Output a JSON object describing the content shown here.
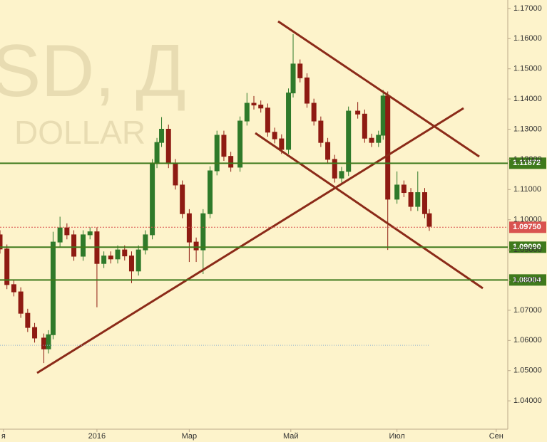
{
  "chart_data": {
    "type": "candlestick",
    "watermark": {
      "symbol": "SD, Д",
      "name": "DOLLAR"
    },
    "x": [
      0,
      3,
      6,
      9,
      12,
      15,
      19,
      21,
      23,
      26,
      29,
      32,
      36,
      39,
      42,
      45,
      48,
      51,
      54,
      57,
      60,
      63,
      66,
      68,
      70,
      73,
      76,
      79,
      82,
      85,
      88,
      91,
      94,
      97,
      100,
      104,
      107,
      110,
      113,
      116,
      119,
      122,
      125,
      127,
      130,
      133,
      136,
      139,
      142,
      145,
      148,
      151,
      155,
      158,
      161,
      164,
      166,
      168,
      172,
      175,
      178,
      181,
      184,
      186
    ],
    "open": [
      1.095,
      1.0903,
      1.0785,
      1.0761,
      1.069,
      1.0643,
      1.0608,
      1.0572,
      1.0619,
      1.0926,
      1.0973,
      1.095,
      1.0879,
      1.095,
      1.096,
      1.0855,
      1.088,
      1.087,
      1.09,
      1.088,
      1.083,
      1.09,
      1.095,
      1.1186,
      1.1256,
      1.13,
      1.1186,
      1.1115,
      1.102,
      1.0926,
      1.09,
      1.102,
      1.1162,
      1.128,
      1.121,
      1.1174,
      1.1327,
      1.1386,
      1.138,
      1.137,
      1.129,
      1.1268,
      1.1233,
      1.142,
      1.1516,
      1.147,
      1.1386,
      1.1327,
      1.1256,
      1.12,
      1.1138,
      1.116,
      1.136,
      1.135,
      1.127,
      1.1256,
      1.128,
      1.141,
      1.1068,
      1.1115,
      1.109,
      1.1044,
      1.109,
      1.102
    ],
    "high": [
      1.0965,
      1.0918,
      1.08,
      1.0776,
      1.0705,
      1.0658,
      1.0623,
      1.0634,
      1.096,
      1.101,
      1.0988,
      1.0965,
      1.0965,
      1.0975,
      1.0975,
      1.0895,
      1.0895,
      1.0915,
      1.0915,
      1.0895,
      1.0915,
      1.0965,
      1.1201,
      1.1271,
      1.134,
      1.1315,
      1.1201,
      1.113,
      1.1035,
      1.0941,
      1.1035,
      1.1177,
      1.1295,
      1.1295,
      1.1225,
      1.1342,
      1.142,
      1.141,
      1.1395,
      1.1385,
      1.1305,
      1.1283,
      1.1435,
      1.1615,
      1.1531,
      1.1485,
      1.1401,
      1.1342,
      1.1271,
      1.1215,
      1.1175,
      1.1375,
      1.139,
      1.1365,
      1.1285,
      1.1295,
      1.143,
      1.1425,
      1.116,
      1.113,
      1.1105,
      1.116,
      1.1105,
      1.1035
    ],
    "low": [
      1.0888,
      1.077,
      1.0746,
      1.0675,
      1.0628,
      1.0593,
      1.0525,
      1.0557,
      1.0604,
      1.0911,
      1.0935,
      1.0864,
      1.0864,
      1.0935,
      1.071,
      1.084,
      1.0855,
      1.0855,
      1.0865,
      1.079,
      1.0815,
      1.0885,
      1.0935,
      1.1171,
      1.1241,
      1.1171,
      1.11,
      1.1005,
      1.086,
      1.086,
      1.082,
      1.1005,
      1.1147,
      1.1195,
      1.1159,
      1.1159,
      1.1312,
      1.1365,
      1.1355,
      1.1275,
      1.1253,
      1.1218,
      1.1218,
      1.1405,
      1.1455,
      1.1371,
      1.1312,
      1.1241,
      1.1185,
      1.1123,
      1.1123,
      1.1145,
      1.1335,
      1.1255,
      1.1241,
      1.1241,
      1.1265,
      1.09,
      1.1053,
      1.1075,
      1.1029,
      1.1029,
      1.1005,
      1.0963
    ],
    "close": [
      1.0903,
      1.0785,
      1.0761,
      1.069,
      1.0643,
      1.0608,
      1.0572,
      1.0619,
      1.0926,
      1.0973,
      1.095,
      1.0879,
      1.095,
      1.096,
      1.0855,
      1.088,
      1.087,
      1.09,
      1.088,
      1.083,
      1.09,
      1.095,
      1.1186,
      1.1256,
      1.13,
      1.1186,
      1.1115,
      1.102,
      1.0926,
      1.09,
      1.102,
      1.1162,
      1.128,
      1.121,
      1.1174,
      1.1327,
      1.1386,
      1.138,
      1.137,
      1.129,
      1.1268,
      1.1233,
      1.142,
      1.1516,
      1.147,
      1.1386,
      1.1327,
      1.1256,
      1.12,
      1.1138,
      1.116,
      1.136,
      1.135,
      1.127,
      1.1256,
      1.128,
      1.141,
      1.1068,
      1.1115,
      1.109,
      1.1044,
      1.109,
      1.102,
      1.0978
    ],
    "up_color": "#2f7a2a",
    "down_color": "#8e1b12",
    "xlim": [
      0,
      220
    ],
    "xticks": [
      {
        "value": 1.5,
        "label": "я"
      },
      {
        "value": 42,
        "label": "2016"
      },
      {
        "value": 82,
        "label": "Мар"
      },
      {
        "value": 126,
        "label": "Май"
      },
      {
        "value": 172,
        "label": "Июл"
      },
      {
        "value": 215,
        "label": "Сен"
      }
    ],
    "ylim": [
      1.0306,
      1.1728
    ],
    "yticks": [
      {
        "value": 1.04,
        "label": "1.04000"
      },
      {
        "value": 1.05,
        "label": "1.05000"
      },
      {
        "value": 1.06,
        "label": "1.06000"
      },
      {
        "value": 1.07,
        "label": "1.07000"
      },
      {
        "value": 1.08,
        "label": "1.08000"
      },
      {
        "value": 1.09,
        "label": "1.09000"
      },
      {
        "value": 1.1,
        "label": "1.10000"
      },
      {
        "value": 1.11,
        "label": "1.11000"
      },
      {
        "value": 1.12,
        "label": "1.12000"
      },
      {
        "value": 1.13,
        "label": "1.13000"
      },
      {
        "value": 1.14,
        "label": "1.14000"
      },
      {
        "value": 1.15,
        "label": "1.15000"
      },
      {
        "value": 1.16,
        "label": "1.16000"
      },
      {
        "value": 1.17,
        "label": "1.17000"
      }
    ],
    "levels": [
      {
        "value": 1.11872,
        "label": "1.11872",
        "color": "#3f7a1c",
        "style": "solid"
      },
      {
        "value": 1.0975,
        "label": "1.09750",
        "color": "#d9534f",
        "style": "dashed"
      },
      {
        "value": 1.0909,
        "label": "1.09090",
        "color": "#3f7a1c",
        "style": "solid"
      },
      {
        "value": 1.08004,
        "label": "1.08004",
        "color": "#3f7a1c",
        "style": "solid"
      },
      {
        "value": 1.0584,
        "color": "#8fb3cf",
        "style": "dotted",
        "end": 186
      }
    ]
  }
}
